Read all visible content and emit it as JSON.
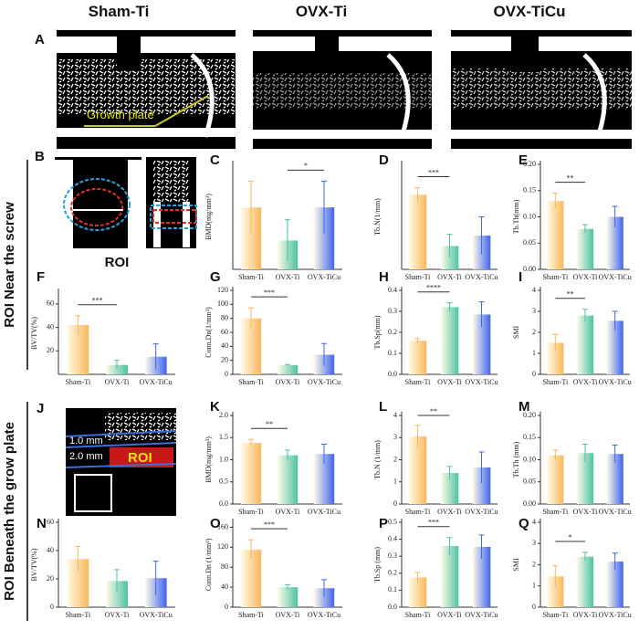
{
  "headers": [
    "Sham-Ti",
    "OVX-Ti",
    "OVX-TiCu"
  ],
  "panel_a": {
    "letter": "A",
    "annotation": "Growth plate"
  },
  "panel_b": {
    "letter": "B",
    "caption": "ROI"
  },
  "panel_j": {
    "letter": "J",
    "labels": [
      "1.0 mm",
      "2.0 mm"
    ],
    "roi": "ROI"
  },
  "row_labels": [
    "ROI Near the screw",
    "ROI Beneath the grow plate"
  ],
  "bar_colors": [
    "#f8b85a",
    "#4cc2a4",
    "#3f63ee"
  ],
  "chart_data": [
    {
      "type": "bar",
      "letter": "C",
      "ylabel": "BMD(mg/mm³)",
      "categories": [
        "Sham-Ti",
        "OVX-Ti",
        "OVX-TiCu"
      ],
      "values": [
        1.18,
        0.55,
        1.18
      ],
      "errors": [
        0.5,
        0.4,
        0.5
      ],
      "ylim": [
        0,
        2
      ],
      "significance": [
        {
          "label": "*",
          "from": 1,
          "to": 2
        }
      ]
    },
    {
      "type": "bar",
      "letter": "D",
      "ylabel": "Tb.N(1/mm)",
      "categories": [
        "Sham-Ti",
        "OVX-Ti",
        "OVX-TiCu"
      ],
      "values": [
        3.2,
        1.0,
        1.45
      ],
      "errors": [
        0.3,
        0.5,
        0.8
      ],
      "ylim": [
        0,
        4.5
      ],
      "significance": [
        {
          "label": "***",
          "from": 0,
          "to": 1
        }
      ]
    },
    {
      "type": "bar",
      "letter": "E",
      "ylabel": "Tb.Th(mm)",
      "categories": [
        "Sham-Ti",
        "OVX-Ti",
        "OVX-TiCu"
      ],
      "values": [
        0.13,
        0.077,
        0.1
      ],
      "errors": [
        0.015,
        0.008,
        0.02
      ],
      "ylim": [
        0,
        0.2
      ],
      "yticks": [
        {
          "value": 0,
          "label": "0.00"
        },
        0.05,
        {
          "value": 0.1,
          "label": "0.10"
        },
        0.15,
        {
          "value": 0.2,
          "label": "0.20"
        }
      ],
      "significance": [
        {
          "label": "**",
          "from": 0,
          "to": 1
        }
      ]
    },
    {
      "type": "bar",
      "letter": "F",
      "ylabel": "BV/TV(%)",
      "categories": [
        "Sham-Ti",
        "OVX-Ti",
        "OVX-TiCu"
      ],
      "values": [
        42,
        8,
        15
      ],
      "errors": [
        8,
        4,
        11
      ],
      "ylim": [
        0,
        70
      ],
      "yticks": [
        20,
        40,
        60
      ],
      "significance": [
        {
          "label": "***",
          "from": 0,
          "to": 1
        }
      ]
    },
    {
      "type": "bar",
      "letter": "G",
      "ylabel": "Conn.Dn(1/mm³)",
      "categories": [
        "Sham-Ti",
        "OVX-Ti",
        "OVX-TiCu"
      ],
      "values": [
        80,
        13,
        28
      ],
      "errors": [
        15,
        1,
        16
      ],
      "ylim": [
        0,
        120
      ],
      "yticks": [
        0,
        20,
        40,
        60,
        80,
        100,
        120
      ],
      "significance": [
        {
          "label": "***",
          "from": 0,
          "to": 1
        }
      ]
    },
    {
      "type": "bar",
      "letter": "H",
      "ylabel": "Tb.Sp(mm)",
      "categories": [
        "Sham-Ti",
        "OVX-Ti",
        "OVX-TiCu"
      ],
      "values": [
        0.16,
        0.32,
        0.285
      ],
      "errors": [
        0.01,
        0.02,
        0.06
      ],
      "ylim": [
        0,
        0.4
      ],
      "yticks": [
        {
          "value": 0,
          "label": "0.0"
        },
        0.1,
        0.2,
        0.3,
        0.4
      ],
      "significance": [
        {
          "label": "****",
          "from": 0,
          "to": 1
        }
      ]
    },
    {
      "type": "bar",
      "letter": "I",
      "ylabel": "SMI",
      "categories": [
        "Sham-Ti",
        "OVX-Ti",
        "OVX-TiCu"
      ],
      "values": [
        1.5,
        2.8,
        2.55
      ],
      "errors": [
        0.4,
        0.3,
        0.45
      ],
      "ylim": [
        0,
        4
      ],
      "yticks": [
        0,
        1,
        2,
        3,
        4
      ],
      "significance": [
        {
          "label": "**",
          "from": 0,
          "to": 1
        }
      ]
    },
    {
      "type": "bar",
      "letter": "K",
      "ylabel": "BMD(mg/mm³)",
      "categories": [
        "Sham-Ti",
        "OVX-Ti",
        "OVX-TiCu"
      ],
      "values": [
        1.38,
        1.1,
        1.13
      ],
      "errors": [
        0.08,
        0.12,
        0.22
      ],
      "ylim": [
        0,
        2
      ],
      "yticks": [
        {
          "value": 0,
          "label": "0.0"
        },
        0.5,
        {
          "value": 1,
          "label": "1.0"
        },
        1.5,
        {
          "value": 2,
          "label": "2.0"
        }
      ],
      "significance": [
        {
          "label": "**",
          "from": 0,
          "to": 1
        }
      ]
    },
    {
      "type": "bar",
      "letter": "L",
      "ylabel": "Tb.N (1/mm)",
      "categories": [
        "Sham-Ti",
        "OVX-Ti",
        "OVX-TiCu"
      ],
      "values": [
        3.05,
        1.4,
        1.65
      ],
      "errors": [
        0.5,
        0.3,
        0.7
      ],
      "ylim": [
        0,
        4
      ],
      "yticks": [
        0,
        1,
        2,
        3,
        4
      ],
      "significance": [
        {
          "label": "**",
          "from": 0,
          "to": 1
        }
      ]
    },
    {
      "type": "bar",
      "letter": "M",
      "ylabel": "Tb.Th (mm)",
      "categories": [
        "Sham-Ti",
        "OVX-Ti",
        "OVX-TiCu"
      ],
      "values": [
        0.11,
        0.115,
        0.113
      ],
      "errors": [
        0.012,
        0.02,
        0.02
      ],
      "ylim": [
        0,
        0.2
      ],
      "yticks": [
        {
          "value": 0,
          "label": "0.00"
        },
        0.05,
        {
          "value": 0.1,
          "label": "0.10"
        },
        0.15,
        {
          "value": 0.2,
          "label": "0.20"
        }
      ],
      "significance": []
    },
    {
      "type": "bar",
      "letter": "N",
      "ylabel": "BV/TV(%)",
      "categories": [
        "Sham-Ti",
        "OVX-Ti",
        "OVX-TiCu"
      ],
      "values": [
        34,
        18.5,
        20.5
      ],
      "errors": [
        9,
        8,
        12
      ],
      "ylim": [
        0,
        60
      ],
      "yticks": [
        0,
        20,
        40,
        60
      ],
      "significance": []
    },
    {
      "type": "bar",
      "letter": "O",
      "ylabel": "Conn.Dn (1/mm³)",
      "categories": [
        "Sham-Ti",
        "OVX-Ti",
        "OVX-TiCu"
      ],
      "values": [
        115,
        40,
        38
      ],
      "errors": [
        20,
        5,
        17
      ],
      "ylim": [
        0,
        170
      ],
      "yticks": [
        0,
        40,
        80,
        120,
        160
      ],
      "significance": [
        {
          "label": "***",
          "from": 0,
          "to": 1
        }
      ]
    },
    {
      "type": "bar",
      "letter": "P",
      "ylabel": "Tb.Sp (mm)",
      "categories": [
        "Sham-Ti",
        "OVX-Ti",
        "OVX-TiCu"
      ],
      "values": [
        0.175,
        0.36,
        0.355
      ],
      "errors": [
        0.03,
        0.05,
        0.07
      ],
      "ylim": [
        0,
        0.5
      ],
      "yticks": [
        {
          "value": 0,
          "label": "0.0"
        },
        0.1,
        0.2,
        0.3,
        0.4,
        0.5
      ],
      "significance": [
        {
          "label": "***",
          "from": 0,
          "to": 1
        }
      ]
    },
    {
      "type": "bar",
      "letter": "Q",
      "ylabel": "SMI",
      "categories": [
        "Sham-Ti",
        "OVX-Ti",
        "OVX-TiCu"
      ],
      "values": [
        1.45,
        2.38,
        2.15
      ],
      "errors": [
        0.5,
        0.2,
        0.4
      ],
      "ylim": [
        0,
        4
      ],
      "yticks": [
        0,
        1,
        2,
        3,
        4
      ],
      "significance": [
        {
          "label": "*",
          "from": 0,
          "to": 1
        }
      ]
    }
  ]
}
